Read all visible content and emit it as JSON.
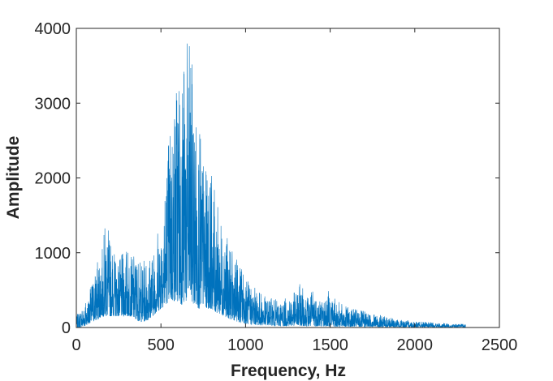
{
  "chart_data": {
    "type": "line",
    "title": "",
    "xlabel": "Frequency, Hz",
    "ylabel": "Amplitude",
    "xlim": [
      0,
      2500
    ],
    "ylim": [
      0,
      4000
    ],
    "xticks": [
      0,
      500,
      1000,
      1500,
      2000,
      2500
    ],
    "yticks": [
      0,
      1000,
      2000,
      3000,
      4000
    ],
    "xtick_labels": [
      "0",
      "500",
      "1000",
      "1500",
      "2000",
      "2500"
    ],
    "ytick_labels": [
      "0",
      "1000",
      "2000",
      "3000",
      "4000"
    ],
    "grid": false,
    "legend": "none",
    "series_color": "#0072BD",
    "envelope": {
      "x": [
        0,
        25,
        50,
        75,
        100,
        125,
        150,
        175,
        200,
        225,
        250,
        275,
        300,
        325,
        350,
        375,
        400,
        425,
        450,
        475,
        500,
        525,
        550,
        575,
        600,
        625,
        650,
        675,
        700,
        725,
        750,
        775,
        800,
        825,
        850,
        875,
        900,
        925,
        950,
        975,
        1000,
        1025,
        1050,
        1075,
        1100,
        1125,
        1150,
        1175,
        1200,
        1225,
        1250,
        1275,
        1300,
        1325,
        1350,
        1375,
        1400,
        1425,
        1450,
        1475,
        1500,
        1525,
        1550,
        1575,
        1600,
        1625,
        1650,
        1675,
        1700,
        1725,
        1750,
        1775,
        1800,
        1825,
        1850,
        1875,
        1900,
        1925,
        1950,
        1975,
        2000,
        2025,
        2050,
        2075,
        2100,
        2125,
        2150,
        2175,
        2200,
        2225,
        2250,
        2275,
        2300
      ],
      "upper": [
        150,
        250,
        350,
        450,
        700,
        900,
        1000,
        1500,
        1200,
        1000,
        900,
        1000,
        1100,
        950,
        1000,
        900,
        900,
        1000,
        1000,
        1300,
        1500,
        2000,
        2800,
        3000,
        3800,
        3500,
        3850,
        3800,
        3000,
        2700,
        2300,
        2000,
        2100,
        1700,
        1500,
        1400,
        1100,
        1000,
        900,
        850,
        700,
        600,
        550,
        500,
        450,
        400,
        400,
        380,
        360,
        380,
        400,
        450,
        500,
        600,
        480,
        420,
        550,
        450,
        400,
        400,
        550,
        400,
        350,
        300,
        280,
        250,
        250,
        230,
        220,
        200,
        200,
        180,
        160,
        150,
        140,
        120,
        110,
        100,
        100,
        90,
        90,
        80,
        80,
        70,
        70,
        60,
        60,
        60,
        50,
        50,
        50,
        50,
        40
      ],
      "lower": [
        0,
        0,
        20,
        50,
        80,
        100,
        150,
        150,
        150,
        150,
        150,
        150,
        150,
        150,
        100,
        80,
        80,
        100,
        150,
        200,
        250,
        300,
        350,
        350,
        350,
        300,
        350,
        350,
        300,
        250,
        300,
        250,
        250,
        200,
        180,
        150,
        120,
        100,
        80,
        60,
        50,
        40,
        40,
        30,
        30,
        30,
        30,
        20,
        20,
        20,
        20,
        20,
        20,
        20,
        20,
        15,
        15,
        15,
        15,
        15,
        15,
        10,
        10,
        10,
        10,
        10,
        10,
        8,
        8,
        8,
        8,
        5,
        5,
        5,
        5,
        5,
        5,
        5,
        5,
        5,
        5,
        5,
        5,
        5,
        5,
        5,
        5,
        5,
        5,
        5,
        5,
        5,
        5
      ]
    }
  }
}
